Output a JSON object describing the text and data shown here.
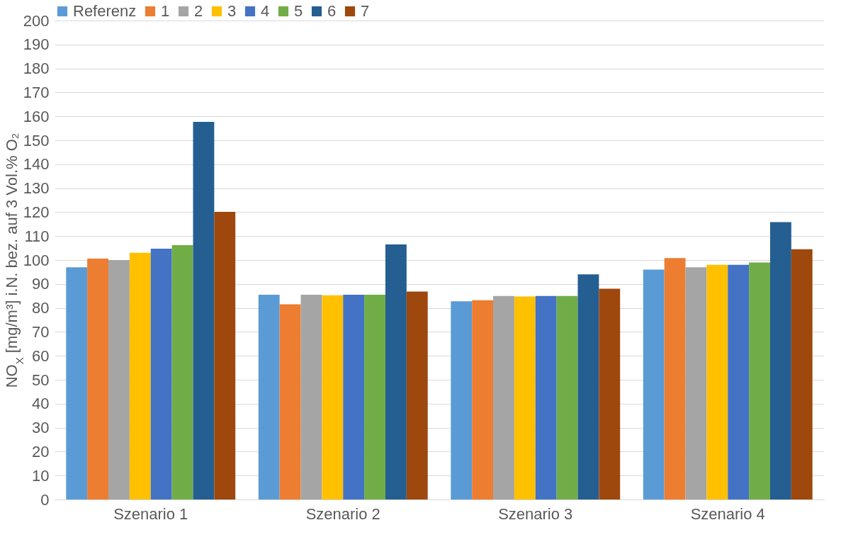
{
  "chart_data": {
    "type": "bar",
    "ylabel": "NO$_{X}$ [mg/m³] i.N. bez. auf 3 Vol.% O₂",
    "categories": [
      "Szenario 1",
      "Szenario 2",
      "Szenario 3",
      "Szenario 4"
    ],
    "series": [
      {
        "name": "Referenz",
        "color": "#5b9bd5",
        "values": [
          97,
          85.5,
          82.8,
          96
        ]
      },
      {
        "name": "1",
        "color": "#ed7d31",
        "values": [
          100.6,
          81.5,
          83.2,
          100.8
        ]
      },
      {
        "name": "2",
        "color": "#a5a5a5",
        "values": [
          100,
          85.5,
          85,
          97
        ]
      },
      {
        "name": "3",
        "color": "#ffc000",
        "values": [
          103,
          85.3,
          84.8,
          98
        ]
      },
      {
        "name": "4",
        "color": "#4472c4",
        "values": [
          104.7,
          85.5,
          85,
          98
        ]
      },
      {
        "name": "5",
        "color": "#70ad47",
        "values": [
          106.2,
          85.5,
          85,
          99
        ]
      },
      {
        "name": "6",
        "color": "#255e91",
        "values": [
          157.7,
          106.5,
          94,
          115.8
        ]
      },
      {
        "name": "7",
        "color": "#9e480e",
        "values": [
          120.1,
          86.8,
          88,
          104.5
        ]
      }
    ],
    "ylim": [
      0,
      200
    ],
    "yticks": [
      0,
      10,
      20,
      30,
      40,
      50,
      60,
      70,
      80,
      90,
      100,
      110,
      120,
      130,
      140,
      150,
      160,
      170,
      180,
      190,
      200
    ],
    "grid": "y",
    "legend": "top"
  }
}
